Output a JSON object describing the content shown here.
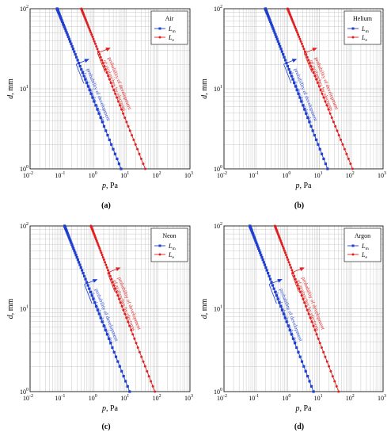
{
  "chart_data": [
    {
      "type": "line",
      "caption": "(a)",
      "xlabel_var": "p",
      "xlabel_unit": ", Pa",
      "ylabel_var": "d",
      "ylabel_unit": ", mm",
      "xlim": [
        0.01,
        1000
      ],
      "ylim": [
        1,
        100
      ],
      "xscale": "log",
      "yscale": "log",
      "grid": true,
      "legend": {
        "title": "Air",
        "position": "top-right"
      },
      "series": [
        {
          "name": "Lm",
          "main": "L",
          "sub": "m",
          "color": "#1f3fd0",
          "marker": "square",
          "points": [
            [
              0.07,
              100
            ],
            [
              7.0,
              1
            ]
          ]
        },
        {
          "name": "Le",
          "main": "L",
          "sub": "e",
          "color": "#e02020",
          "marker": "circle",
          "points": [
            [
              0.4,
              100
            ],
            [
              40,
              1
            ]
          ]
        }
      ],
      "annotations": [
        {
          "color": "#e02020",
          "line1": "probability of development",
          "line2": "of avalanches by electrons"
        },
        {
          "color": "#1f3fd0",
          "line1": "probability of development",
          "line2": "of avalanches by molecules"
        }
      ]
    },
    {
      "type": "line",
      "caption": "(b)",
      "xlabel_var": "p",
      "xlabel_unit": ", Pa",
      "ylabel_var": "d",
      "ylabel_unit": ", mm",
      "xlim": [
        0.01,
        1000
      ],
      "ylim": [
        1,
        100
      ],
      "xscale": "log",
      "yscale": "log",
      "grid": true,
      "legend": {
        "title": "Helium",
        "position": "top-right"
      },
      "series": [
        {
          "name": "Lm",
          "main": "L",
          "sub": "m",
          "color": "#1f3fd0",
          "marker": "square",
          "points": [
            [
              0.2,
              100
            ],
            [
              18,
              1
            ]
          ]
        },
        {
          "name": "Le",
          "main": "L",
          "sub": "e",
          "color": "#e02020",
          "marker": "circle",
          "points": [
            [
              1.0,
              100
            ],
            [
              110,
              1
            ]
          ]
        }
      ],
      "annotations": [
        {
          "color": "#e02020",
          "line1": "probability of development",
          "line2": "of avalanches by electrons"
        },
        {
          "color": "#1f3fd0",
          "line1": "probability of development",
          "line2": "of avalanches by molecules"
        }
      ]
    },
    {
      "type": "line",
      "caption": "(c)",
      "xlabel_var": "p",
      "xlabel_unit": ", Pa",
      "ylabel_var": "d",
      "ylabel_unit": ", mm",
      "xlim": [
        0.01,
        1000
      ],
      "ylim": [
        1,
        100
      ],
      "xscale": "log",
      "yscale": "log",
      "grid": true,
      "legend": {
        "title": "Neon",
        "position": "top-right"
      },
      "series": [
        {
          "name": "Lm",
          "main": "L",
          "sub": "m",
          "color": "#1f3fd0",
          "marker": "square",
          "points": [
            [
              0.12,
              100
            ],
            [
              13,
              1
            ]
          ]
        },
        {
          "name": "Le",
          "main": "L",
          "sub": "e",
          "color": "#e02020",
          "marker": "circle",
          "points": [
            [
              0.8,
              100
            ],
            [
              80,
              1
            ]
          ]
        }
      ],
      "annotations": [
        {
          "color": "#e02020",
          "line1": "probability of development",
          "line2": "of avalanches by electrons"
        },
        {
          "color": "#1f3fd0",
          "line1": "probability of development",
          "line2": "of avalanches by molecules"
        }
      ]
    },
    {
      "type": "line",
      "caption": "(d)",
      "xlabel_var": "p",
      "xlabel_unit": ", Pa",
      "ylabel_var": "d",
      "ylabel_unit": ", mm",
      "xlim": [
        0.01,
        1000
      ],
      "ylim": [
        1,
        100
      ],
      "xscale": "log",
      "yscale": "log",
      "grid": true,
      "legend": {
        "title": "Argon",
        "position": "top-right"
      },
      "series": [
        {
          "name": "Lm",
          "main": "L",
          "sub": "m",
          "color": "#1f3fd0",
          "marker": "square",
          "points": [
            [
              0.065,
              100
            ],
            [
              6.5,
              1
            ]
          ]
        },
        {
          "name": "Le",
          "main": "L",
          "sub": "e",
          "color": "#e02020",
          "marker": "circle",
          "points": [
            [
              0.4,
              100
            ],
            [
              40,
              1
            ]
          ]
        }
      ],
      "annotations": [
        {
          "color": "#e02020",
          "line1": "probability of development",
          "line2": "of avalanches by electrons"
        },
        {
          "color": "#1f3fd0",
          "line1": "probability of development",
          "line2": "of avalanches by molecules"
        }
      ]
    }
  ]
}
